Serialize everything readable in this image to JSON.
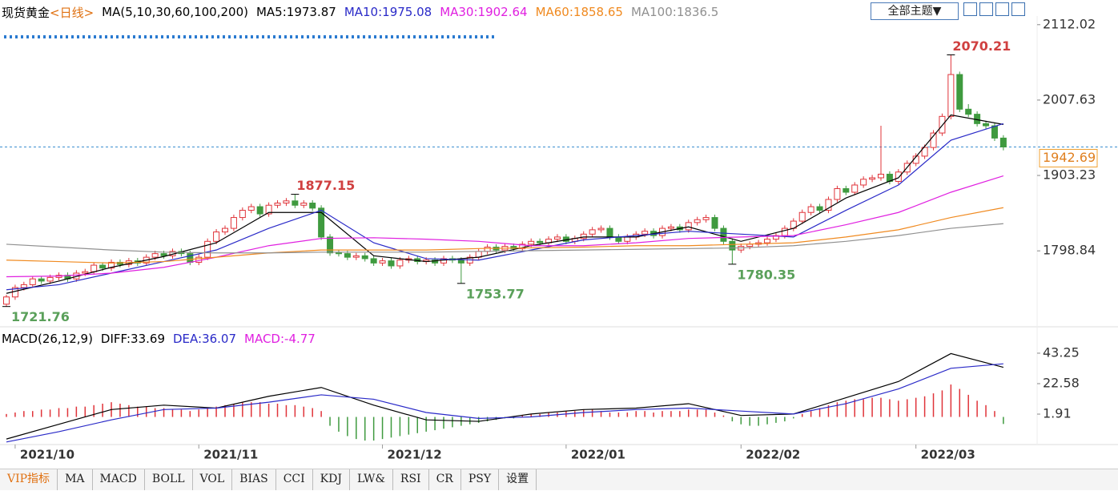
{
  "chart_data": [
    {
      "type": "candlestick",
      "title": "现货黄金",
      "period": "<日线>",
      "indicator": "MA(5,10,30,60,100,200)",
      "categories": [
        null,
        "2021/10",
        null,
        null,
        null,
        null,
        null,
        null,
        null,
        null,
        null,
        null,
        null,
        null,
        null,
        null,
        null,
        null,
        null,
        null,
        null,
        null,
        "2021/11",
        null,
        null,
        null,
        null,
        null,
        null,
        null,
        null,
        null,
        null,
        null,
        null,
        null,
        null,
        null,
        null,
        null,
        null,
        null,
        null,
        "2021/12",
        null,
        null,
        null,
        null,
        null,
        null,
        null,
        null,
        null,
        null,
        null,
        null,
        null,
        null,
        null,
        null,
        null,
        null,
        null,
        null,
        "2022/01",
        null,
        null,
        null,
        null,
        null,
        null,
        null,
        null,
        null,
        null,
        null,
        null,
        null,
        null,
        null,
        null,
        null,
        null,
        null,
        "2022/02",
        null,
        null,
        null,
        null,
        null,
        null,
        null,
        null,
        null,
        null,
        null,
        null,
        null,
        null,
        null,
        null,
        null,
        null,
        null,
        "2022/03",
        null,
        null,
        null,
        null,
        null,
        null,
        null,
        null,
        null
      ],
      "ohlc": [
        [
          1725,
          1738,
          1721.76,
          1735
        ],
        [
          1735,
          1752,
          1731,
          1748
        ],
        [
          1748,
          1756,
          1744,
          1752
        ],
        [
          1752,
          1764,
          1748,
          1760
        ],
        [
          1760,
          1764,
          1753,
          1757
        ],
        [
          1757,
          1766,
          1753,
          1762
        ],
        [
          1762,
          1769,
          1758,
          1765
        ],
        [
          1765,
          1769,
          1756,
          1760
        ],
        [
          1760,
          1772,
          1756,
          1768
        ],
        [
          1768,
          1774,
          1764,
          1770
        ],
        [
          1770,
          1783,
          1766,
          1779
        ],
        [
          1779,
          1783,
          1771,
          1775
        ],
        [
          1775,
          1787,
          1771,
          1783
        ],
        [
          1783,
          1787,
          1776,
          1780
        ],
        [
          1780,
          1789,
          1776,
          1785
        ],
        [
          1785,
          1789,
          1778,
          1782
        ],
        [
          1782,
          1794,
          1778,
          1790
        ],
        [
          1790,
          1799,
          1786,
          1795
        ],
        [
          1795,
          1799,
          1788,
          1792
        ],
        [
          1792,
          1802,
          1788,
          1798
        ],
        [
          1798,
          1802,
          1791,
          1795
        ],
        [
          1795,
          1799,
          1779,
          1783
        ],
        [
          1783,
          1794,
          1779,
          1790
        ],
        [
          1790,
          1816,
          1786,
          1812
        ],
        [
          1812,
          1829,
          1808,
          1825
        ],
        [
          1825,
          1834,
          1821,
          1830
        ],
        [
          1830,
          1849,
          1826,
          1845
        ],
        [
          1845,
          1859,
          1841,
          1855
        ],
        [
          1855,
          1864,
          1851,
          1860
        ],
        [
          1860,
          1864,
          1846,
          1850
        ],
        [
          1850,
          1866,
          1846,
          1862
        ],
        [
          1862,
          1869,
          1858,
          1865
        ],
        [
          1865,
          1872,
          1861,
          1868
        ],
        [
          1868,
          1877.15,
          1858,
          1862
        ],
        [
          1862,
          1869,
          1858,
          1865
        ],
        [
          1865,
          1869,
          1854,
          1858
        ],
        [
          1858,
          1862,
          1814,
          1818
        ],
        [
          1818,
          1822,
          1792,
          1796
        ],
        [
          1796,
          1800,
          1791,
          1795
        ],
        [
          1795,
          1799,
          1786,
          1790
        ],
        [
          1790,
          1796,
          1786,
          1792
        ],
        [
          1792,
          1796,
          1784,
          1788
        ],
        [
          1788,
          1792,
          1778,
          1782
        ],
        [
          1782,
          1789,
          1778,
          1785
        ],
        [
          1785,
          1789,
          1774,
          1778
        ],
        [
          1778,
          1790,
          1774,
          1786
        ],
        [
          1786,
          1792,
          1782,
          1788
        ],
        [
          1788,
          1792,
          1780,
          1784
        ],
        [
          1784,
          1790,
          1780,
          1786
        ],
        [
          1786,
          1790,
          1778,
          1782
        ],
        [
          1782,
          1792,
          1778,
          1788
        ],
        [
          1788,
          1792,
          1782,
          1786
        ],
        [
          1786,
          1790,
          1753.77,
          1782
        ],
        [
          1782,
          1794,
          1778,
          1790
        ],
        [
          1790,
          1802,
          1786,
          1798
        ],
        [
          1798,
          1808,
          1794,
          1804
        ],
        [
          1804,
          1808,
          1796,
          1800
        ],
        [
          1800,
          1809,
          1796,
          1805
        ],
        [
          1805,
          1809,
          1798,
          1802
        ],
        [
          1802,
          1812,
          1798,
          1808
        ],
        [
          1808,
          1816,
          1804,
          1812
        ],
        [
          1812,
          1816,
          1806,
          1810
        ],
        [
          1810,
          1819,
          1806,
          1815
        ],
        [
          1815,
          1822,
          1811,
          1818
        ],
        [
          1818,
          1822,
          1808,
          1812
        ],
        [
          1812,
          1820,
          1808,
          1816
        ],
        [
          1816,
          1826,
          1812,
          1822
        ],
        [
          1822,
          1832,
          1818,
          1828
        ],
        [
          1828,
          1834,
          1824,
          1830
        ],
        [
          1830,
          1834,
          1814,
          1818
        ],
        [
          1818,
          1822,
          1808,
          1812
        ],
        [
          1812,
          1822,
          1808,
          1818
        ],
        [
          1818,
          1826,
          1814,
          1822
        ],
        [
          1822,
          1830,
          1818,
          1826
        ],
        [
          1826,
          1830,
          1816,
          1820
        ],
        [
          1820,
          1834,
          1816,
          1830
        ],
        [
          1830,
          1836,
          1826,
          1832
        ],
        [
          1832,
          1836,
          1824,
          1828
        ],
        [
          1828,
          1842,
          1824,
          1838
        ],
        [
          1838,
          1846,
          1834,
          1842
        ],
        [
          1842,
          1849,
          1838,
          1845
        ],
        [
          1845,
          1849,
          1826,
          1830
        ],
        [
          1830,
          1834,
          1808,
          1812
        ],
        [
          1812,
          1816,
          1780.35,
          1800
        ],
        [
          1800,
          1809,
          1796,
          1805
        ],
        [
          1805,
          1812,
          1801,
          1808
        ],
        [
          1808,
          1814,
          1804,
          1810
        ],
        [
          1810,
          1819,
          1806,
          1815
        ],
        [
          1815,
          1824,
          1811,
          1820
        ],
        [
          1820,
          1834,
          1816,
          1830
        ],
        [
          1830,
          1844,
          1826,
          1840
        ],
        [
          1840,
          1856,
          1836,
          1852
        ],
        [
          1852,
          1864,
          1848,
          1860
        ],
        [
          1860,
          1864,
          1851,
          1855
        ],
        [
          1855,
          1874,
          1851,
          1870
        ],
        [
          1870,
          1889,
          1866,
          1885
        ],
        [
          1885,
          1889,
          1876,
          1880
        ],
        [
          1880,
          1894,
          1876,
          1890
        ],
        [
          1890,
          1902,
          1886,
          1898
        ],
        [
          1898,
          1904,
          1894,
          1900
        ],
        [
          1900,
          1972,
          1896,
          1905
        ],
        [
          1905,
          1909,
          1891,
          1895
        ],
        [
          1895,
          1912,
          1891,
          1908
        ],
        [
          1908,
          1924,
          1904,
          1920
        ],
        [
          1920,
          1934,
          1916,
          1930
        ],
        [
          1930,
          1946,
          1926,
          1942
        ],
        [
          1942,
          1966,
          1938,
          1962
        ],
        [
          1962,
          1989,
          1958,
          1985
        ],
        [
          1985,
          2070.21,
          1981,
          2043
        ],
        [
          2043,
          2047,
          1991,
          1995
        ],
        [
          1995,
          2002,
          1984,
          1988
        ],
        [
          1988,
          1992,
          1971,
          1975
        ],
        [
          1975,
          1979,
          1968,
          1972
        ],
        [
          1972,
          1976,
          1951,
          1955
        ],
        [
          1955,
          1959,
          1938,
          1942.69
        ]
      ],
      "up_color": "#e0343a",
      "down_color": "#3f9a3f",
      "ylim": [
        1697,
        2124
      ],
      "yticks": [
        2112.02,
        2007.63,
        1903.23,
        1798.84
      ],
      "last_price": 1942.69,
      "series": [
        {
          "label": "MA5:1973.87",
          "color": "#000000",
          "x": [
            0,
            6,
            12,
            18,
            24,
            30,
            36,
            42,
            48,
            54,
            60,
            66,
            72,
            78,
            84,
            90,
            96,
            102,
            108,
            114
          ],
          "values": [
            1740,
            1757,
            1776,
            1791,
            1810,
            1852,
            1852,
            1792,
            1784,
            1790,
            1806,
            1818,
            1818,
            1832,
            1812,
            1830,
            1872,
            1900,
            1987,
            1973.87
          ]
        },
        {
          "label": "MA10:1975.08",
          "color": "#2a2ac8",
          "x": [
            0,
            6,
            12,
            18,
            24,
            30,
            36,
            42,
            48,
            54,
            60,
            66,
            72,
            78,
            84,
            90,
            96,
            102,
            108,
            114
          ],
          "values": [
            1745,
            1752,
            1768,
            1784,
            1800,
            1830,
            1855,
            1810,
            1788,
            1786,
            1800,
            1814,
            1820,
            1826,
            1822,
            1818,
            1855,
            1890,
            1952,
            1975.08
          ]
        },
        {
          "label": "MA30:1902.64",
          "color": "#e020e0",
          "x": [
            0,
            6,
            12,
            18,
            24,
            30,
            36,
            42,
            48,
            54,
            60,
            66,
            72,
            78,
            84,
            90,
            96,
            102,
            108,
            114
          ],
          "values": [
            1763,
            1764,
            1768,
            1776,
            1790,
            1806,
            1816,
            1817,
            1815,
            1812,
            1806,
            1806,
            1810,
            1816,
            1818,
            1820,
            1835,
            1852,
            1880,
            1902.64
          ]
        },
        {
          "label": "MA60:1858.65",
          "color": "#f08a20",
          "x": [
            0,
            6,
            12,
            18,
            24,
            30,
            36,
            42,
            48,
            54,
            60,
            66,
            72,
            78,
            84,
            90,
            96,
            102,
            108,
            114
          ],
          "values": [
            1786,
            1784,
            1782,
            1784,
            1790,
            1796,
            1800,
            1800,
            1800,
            1802,
            1803,
            1804,
            1806,
            1806,
            1808,
            1810,
            1818,
            1828,
            1845,
            1858.65
          ]
        },
        {
          "label": "MA100:1836.5",
          "color": "#909090",
          "x": [
            0,
            6,
            12,
            18,
            24,
            30,
            36,
            42,
            48,
            54,
            60,
            66,
            72,
            78,
            84,
            90,
            96,
            102,
            108,
            114
          ],
          "values": [
            1808,
            1804,
            1800,
            1797,
            1796,
            1796,
            1797,
            1797,
            1797,
            1798,
            1799,
            1800,
            1801,
            1802,
            1803,
            1806,
            1812,
            1820,
            1830,
            1836.5
          ]
        }
      ]
    },
    {
      "type": "macd",
      "title": "MACD(26,12,9)",
      "ylim": [
        -17.1,
        49.2
      ],
      "yticks": [
        43.25,
        22.58,
        1.91
      ],
      "series": [
        {
          "label": "DIFF:33.69",
          "color": "#000000",
          "x": [
            0,
            6,
            12,
            18,
            24,
            30,
            36,
            42,
            48,
            54,
            60,
            66,
            72,
            78,
            84,
            90,
            96,
            102,
            108,
            114
          ],
          "values": [
            -15,
            -5,
            5,
            8,
            6,
            14,
            20,
            8,
            -2,
            -3,
            2,
            5,
            6,
            9,
            1,
            2,
            13,
            24,
            43,
            33.69
          ]
        },
        {
          "label": "DEA:36.07",
          "color": "#2a2ac8",
          "x": [
            0,
            6,
            12,
            18,
            24,
            30,
            36,
            42,
            48,
            54,
            60,
            66,
            72,
            78,
            84,
            90,
            96,
            102,
            108,
            114
          ],
          "values": [
            -17,
            -10,
            -2,
            5,
            6,
            10,
            15,
            12,
            3,
            -1,
            0,
            3,
            5,
            6,
            4,
            2,
            9,
            19,
            33,
            36.07
          ]
        }
      ],
      "histogram": {
        "label": "MACD:-4.77",
        "label_color": "#e020e0",
        "up_color": "#e0343a",
        "down_color": "#3f9a3f",
        "values": [
          2,
          3,
          4,
          4,
          5,
          5,
          6,
          6,
          7,
          7,
          8,
          9,
          10,
          9,
          8,
          7,
          7,
          6,
          6,
          5,
          5,
          4,
          5,
          6,
          7,
          8,
          9,
          10,
          10,
          10,
          9,
          9,
          8,
          8,
          7,
          6,
          4,
          -6,
          -10,
          -13,
          -15,
          -16,
          -16,
          -15,
          -14,
          -13,
          -12,
          -11,
          -10,
          -9,
          -8,
          -7,
          -6,
          -5,
          -4,
          -3,
          -2,
          -1,
          -1,
          1,
          2,
          2,
          3,
          3,
          4,
          4,
          5,
          5,
          4,
          3,
          3,
          3,
          4,
          4,
          3,
          4,
          4,
          4,
          5,
          5,
          5,
          3,
          1,
          -3,
          -5,
          -6,
          -6,
          -5,
          -4,
          -3,
          -1,
          2,
          4,
          6,
          8,
          10,
          11,
          12,
          12,
          13,
          13,
          12,
          11,
          12,
          13,
          14,
          16,
          18,
          22,
          19,
          15,
          11,
          8,
          4,
          -4.77
        ]
      }
    }
  ],
  "ui": {
    "theme_button": "全部主题▼",
    "tabs": [
      "VIP指标",
      "MA",
      "MACD",
      "BOLL",
      "VOL",
      "BIAS",
      "CCI",
      "KDJ",
      "LW&",
      "RSI",
      "CR",
      "PSY",
      "设置"
    ]
  }
}
